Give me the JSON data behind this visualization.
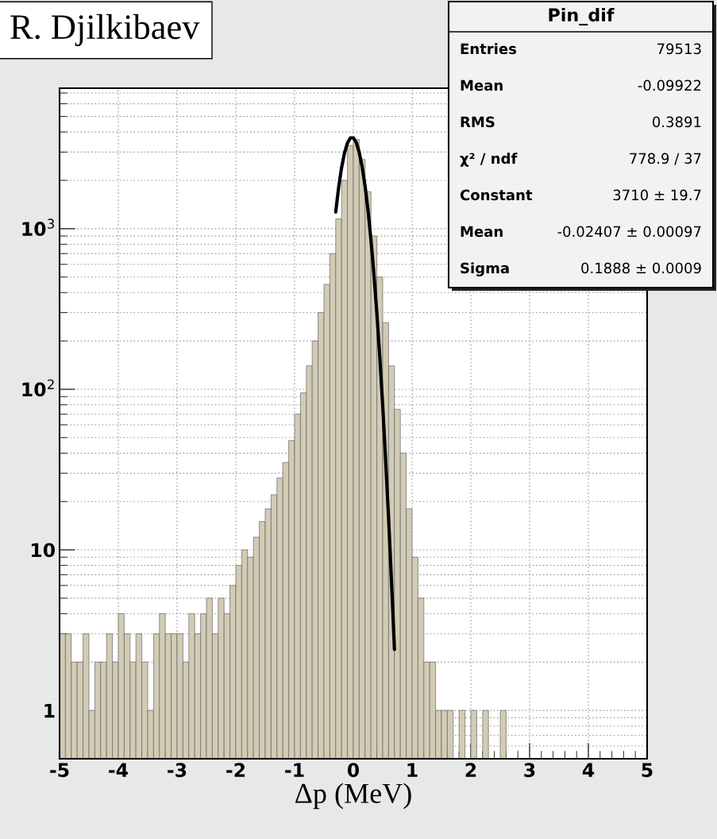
{
  "chart_data": {
    "type": "histogram",
    "xlabel": "Δp (MeV)",
    "log": "y",
    "grid": true,
    "xlim": [
      -5,
      5
    ],
    "xticks": [
      -5,
      -4,
      -3,
      -2,
      -1,
      0,
      1,
      2,
      3,
      4,
      5
    ],
    "ylim": [
      0.5,
      7500
    ],
    "yticks": [
      1,
      10,
      {
        "value": 100,
        "label": "10$^{2}$"
      },
      {
        "value": 1000,
        "label": "10$^{3}$"
      }
    ],
    "series": [
      {
        "type": "histogram",
        "color": "#d2cbb5",
        "bins": [
          -5.0,
          -4.9,
          -4.8,
          -4.7,
          -4.6,
          -4.5,
          -4.4,
          -4.3,
          -4.2,
          -4.1,
          -4.0,
          -3.9,
          -3.8,
          -3.7,
          -3.6,
          -3.5,
          -3.4,
          -3.3,
          -3.2,
          -3.1,
          -3.0,
          -2.9,
          -2.8,
          -2.7,
          -2.6,
          -2.5,
          -2.4,
          -2.3,
          -2.2,
          -2.1,
          -2.0,
          -1.9,
          -1.8,
          -1.7,
          -1.6,
          -1.5,
          -1.4,
          -1.3,
          -1.2,
          -1.1,
          -1.0,
          -0.9,
          -0.8,
          -0.7,
          -0.6,
          -0.5,
          -0.4,
          -0.3,
          -0.2,
          -0.1,
          0.0,
          0.1,
          0.2,
          0.3,
          0.4,
          0.5,
          0.6,
          0.7,
          0.8,
          0.9,
          1.0,
          1.1,
          1.2,
          1.3,
          1.4,
          1.5,
          1.6,
          1.7,
          1.8,
          1.9,
          2.0,
          2.1,
          2.2,
          2.3,
          2.4,
          2.5,
          2.6,
          2.7,
          2.8,
          2.9,
          3.0,
          3.1,
          3.2,
          3.3,
          3.4,
          3.5,
          3.6,
          3.7,
          3.8,
          3.9,
          4.0,
          4.1,
          4.2,
          4.3,
          4.4,
          4.5,
          4.6,
          4.7,
          4.8,
          4.9,
          5.0
        ],
        "values": [
          3,
          3,
          2,
          2,
          3,
          1,
          2,
          2,
          3,
          2,
          4,
          3,
          2,
          3,
          2,
          1,
          3,
          4,
          3,
          3,
          3,
          2,
          4,
          3,
          4,
          5,
          3,
          5,
          4,
          6,
          8,
          10,
          9,
          12,
          15,
          18,
          22,
          28,
          35,
          48,
          70,
          95,
          140,
          200,
          300,
          450,
          700,
          1150,
          2000,
          3300,
          3600,
          2700,
          1700,
          900,
          500,
          260,
          140,
          75,
          40,
          18,
          9,
          5,
          2,
          2,
          1,
          1,
          1,
          null,
          1,
          null,
          1,
          null,
          1,
          null,
          null,
          1,
          null,
          null,
          null,
          null,
          null,
          null,
          null,
          null,
          null,
          null,
          null,
          null,
          null,
          null,
          null,
          null,
          null,
          null,
          null,
          null,
          null,
          null,
          null,
          null
        ]
      },
      {
        "type": "line",
        "color": "#000000",
        "x": [
          -0.3,
          -0.25,
          -0.2,
          -0.15,
          -0.1,
          -0.05,
          0.0,
          0.05,
          0.1,
          0.15,
          0.2,
          0.25,
          0.3,
          0.35,
          0.4,
          0.45,
          0.5,
          0.55,
          0.6,
          0.65,
          0.7
        ],
        "values": [
          1270,
          1810,
          2400,
          2970,
          3420,
          3680,
          3680,
          3440,
          2990,
          2430,
          1840,
          1300,
          851,
          522,
          298,
          159,
          79,
          36,
          15.7,
          6.3,
          2.4
        ]
      }
    ],
    "annotations": [
      "R. Djilkibaev",
      "Pin_dif",
      "Entries",
      "79513",
      "Mean",
      "-0.09922",
      "RMS",
      "0.3891",
      "χ² / ndf",
      "778.9 / 37",
      "Constant",
      "3710 ± 19.7",
      "Mean",
      "-0.02407 ± 0.00097",
      "Sigma",
      "0.1888 ± 0.0009"
    ]
  }
}
